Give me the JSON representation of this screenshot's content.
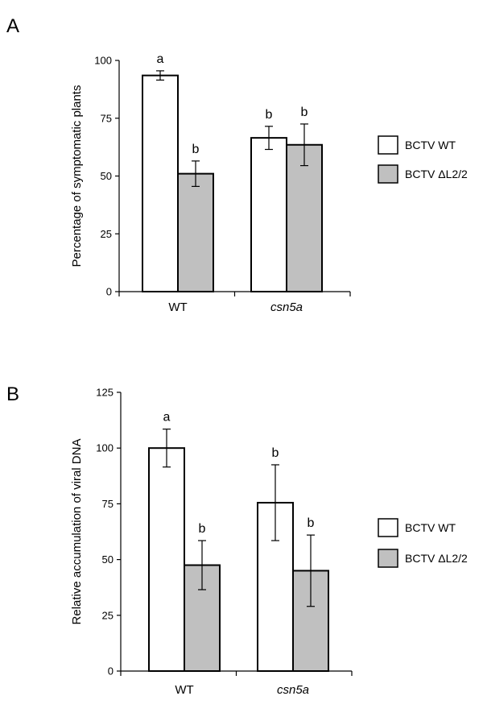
{
  "chart_data": [
    {
      "type": "bar",
      "panel": "A",
      "title": "",
      "xlabel": "",
      "ylabel": "Percentage of symptomatic plants",
      "ylim": [
        0,
        100
      ],
      "yticks": [
        0,
        25,
        50,
        75,
        100
      ],
      "categories": [
        "WT",
        "csn5a"
      ],
      "italic_categories": [
        false,
        true
      ],
      "series": [
        {
          "name": "BCTV WT",
          "color": "#ffffff",
          "values": [
            93.5,
            66.5
          ],
          "errors": [
            2,
            5
          ],
          "sig": [
            "a",
            "b"
          ]
        },
        {
          "name": "BCTV ΔL2/2",
          "color": "#c0c0c0",
          "values": [
            51,
            63.5
          ],
          "errors": [
            5.5,
            9
          ],
          "sig": [
            "b",
            "b"
          ]
        }
      ],
      "legend_position": "right"
    },
    {
      "type": "bar",
      "panel": "B",
      "title": "",
      "xlabel": "",
      "ylabel": "Relative accumulation of viral DNA",
      "ylim": [
        0,
        125
      ],
      "yticks": [
        0,
        25,
        50,
        75,
        100,
        125
      ],
      "categories": [
        "WT",
        "csn5a"
      ],
      "italic_categories": [
        false,
        true
      ],
      "series": [
        {
          "name": "BCTV WT",
          "color": "#ffffff",
          "values": [
            100,
            75.5
          ],
          "errors": [
            8.5,
            17
          ],
          "sig": [
            "a",
            "b"
          ]
        },
        {
          "name": "BCTV ΔL2/2",
          "color": "#c0c0c0",
          "values": [
            47.5,
            45
          ],
          "errors": [
            11,
            16
          ],
          "sig": [
            "b",
            "b"
          ]
        }
      ],
      "legend_position": "right"
    }
  ]
}
